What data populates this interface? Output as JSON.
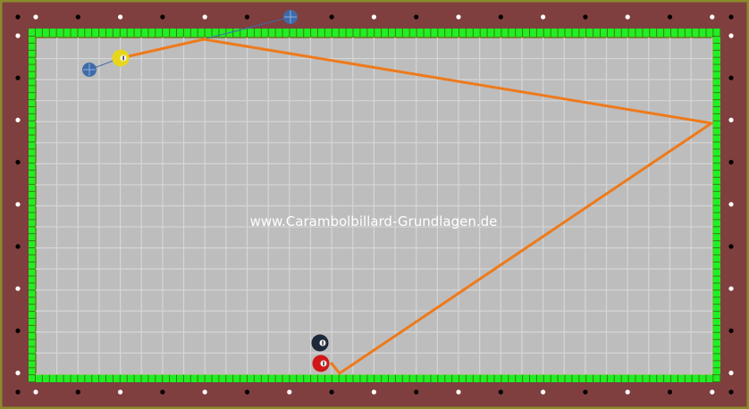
{
  "watermark": "www.Carambolbillard-Grundlagen.de",
  "colors": {
    "rail": "#7f3f3f",
    "frame": "#8a8a2a",
    "cushion": "#22ee22",
    "cloth": "#bdbdbd",
    "grid": "#d6d6d6",
    "path": "#ee7a1a",
    "aim": "#3f6aa8"
  },
  "balls": [
    {
      "name": "cue-ball-yellow",
      "color": "#e8d61a"
    },
    {
      "name": "object-ball-black",
      "color": "#1e2a3a"
    },
    {
      "name": "object-ball-red",
      "color": "#d01818"
    }
  ],
  "icons": [
    "aim-marker-icon",
    "diamond-marker-icon"
  ]
}
